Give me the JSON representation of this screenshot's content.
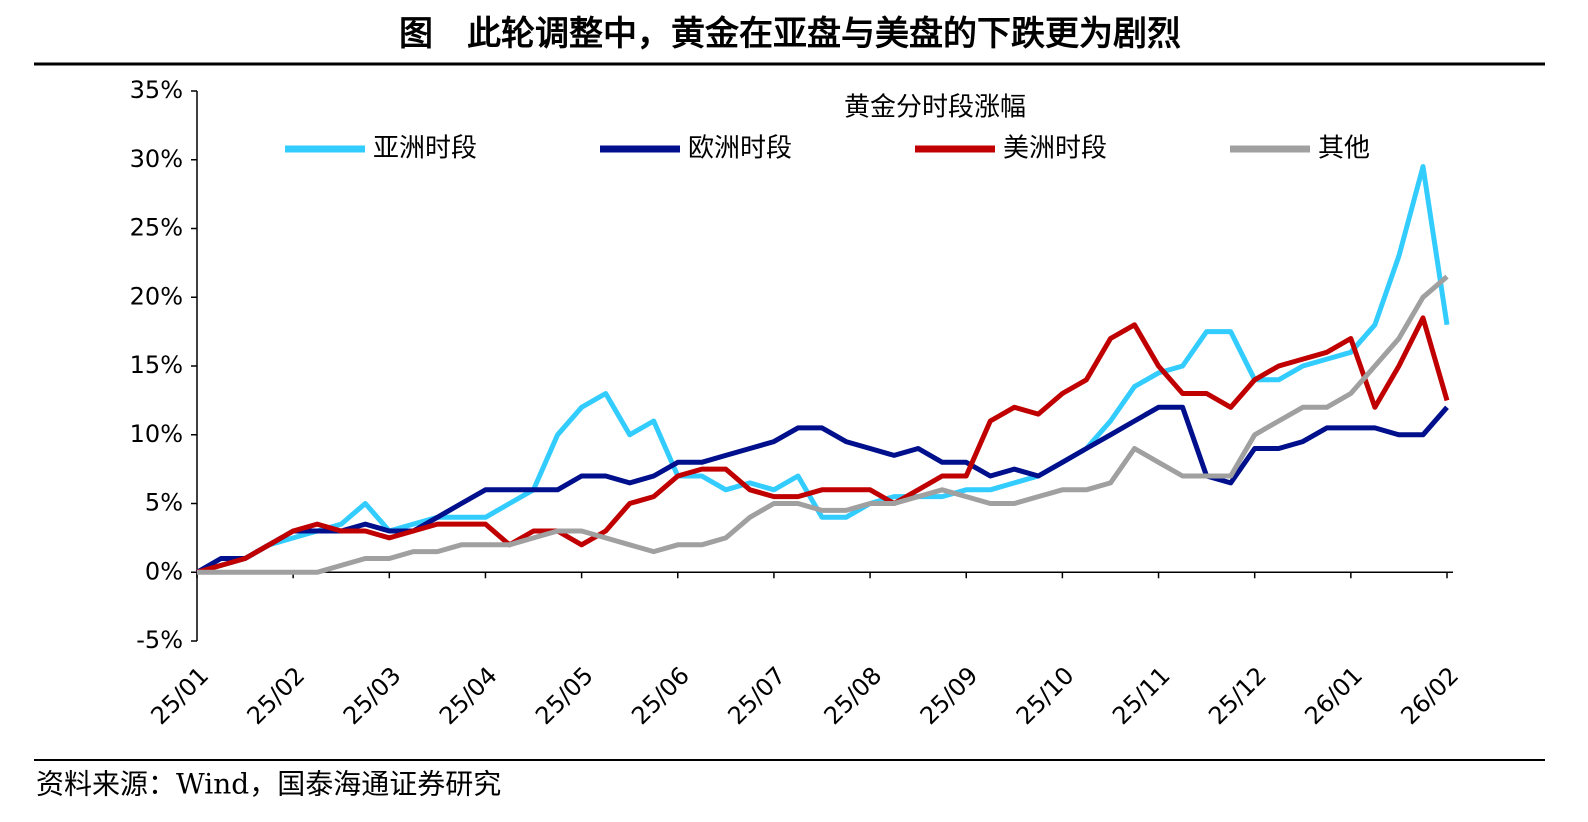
{
  "chart_data": {
    "type": "line",
    "title": "图　此轮调整中，黄金在亚盘与美盘的下跌更为剧烈",
    "legend_title": "黄金分时段涨幅",
    "source": "资料来源：Wind，国泰海通证券研究",
    "legend": "top",
    "categories": [
      "25/01",
      null,
      null,
      null,
      "25/02",
      null,
      null,
      null,
      "25/03",
      null,
      null,
      null,
      "25/04",
      null,
      null,
      null,
      "25/05",
      null,
      null,
      null,
      "25/06",
      null,
      null,
      null,
      "25/07",
      null,
      null,
      null,
      "25/08",
      null,
      null,
      null,
      "25/09",
      null,
      null,
      null,
      "25/10",
      null,
      null,
      null,
      "25/11",
      null,
      null,
      null,
      "25/12",
      null,
      null,
      null,
      "26/01",
      null,
      null,
      null,
      "26/02"
    ],
    "series": [
      {
        "name": "亚洲时段",
        "color": "#33ccff",
        "values": [
          0,
          0.5,
          1,
          2,
          2.5,
          3,
          3.5,
          5,
          3,
          3.5,
          4,
          4,
          4,
          5,
          6,
          10,
          12,
          13,
          10,
          11,
          7,
          7,
          6,
          6.5,
          6,
          7,
          4,
          4,
          5,
          5.5,
          5.5,
          5.5,
          6,
          6,
          6.5,
          7,
          8,
          9,
          11,
          13.5,
          14.5,
          15,
          17.5,
          17.5,
          14,
          14,
          15,
          15.5,
          16,
          18,
          23,
          29.5,
          18
        ]
      },
      {
        "name": "欧洲时段",
        "color": "#000f8c",
        "values": [
          0,
          1,
          1,
          2,
          3,
          3,
          3,
          3.5,
          3,
          3,
          4,
          5,
          6,
          6,
          6,
          6,
          7,
          7,
          6.5,
          7,
          8,
          8,
          8.5,
          9,
          9.5,
          10.5,
          10.5,
          9.5,
          9,
          8.5,
          9,
          8,
          8,
          7,
          7.5,
          7,
          8,
          9,
          10,
          11,
          12,
          12,
          7,
          6.5,
          9,
          9,
          9.5,
          10.5,
          10.5,
          10.5,
          10,
          10,
          12
        ]
      },
      {
        "name": "美洲时段",
        "color": "#c00000",
        "values": [
          0,
          0.5,
          1,
          2,
          3,
          3.5,
          3,
          3,
          2.5,
          3,
          3.5,
          3.5,
          3.5,
          2,
          3,
          3,
          2,
          3,
          5,
          5.5,
          7,
          7.5,
          7.5,
          6,
          5.5,
          5.5,
          6,
          6,
          6,
          5,
          6,
          7,
          7,
          11,
          12,
          11.5,
          13,
          14,
          17,
          18,
          15,
          13,
          13,
          12,
          14,
          15,
          15.5,
          16,
          17,
          12,
          15,
          18.5,
          12.5
        ]
      },
      {
        "name": "其他",
        "color": "#a0a0a0",
        "values": [
          0,
          0,
          0,
          0,
          0,
          0,
          0.5,
          1,
          1,
          1.5,
          1.5,
          2,
          2,
          2,
          2.5,
          3,
          3,
          2.5,
          2,
          1.5,
          2,
          2,
          2.5,
          4,
          5,
          5,
          4.5,
          4.5,
          5,
          5,
          5.5,
          6,
          5.5,
          5,
          5,
          5.5,
          6,
          6,
          6.5,
          9,
          8,
          7,
          7,
          7,
          10,
          11,
          12,
          12,
          13,
          15,
          17,
          20,
          21.5
        ]
      }
    ],
    "ylim": [
      -5,
      35
    ],
    "yticks": [
      {
        "value": -5,
        "label": "-5%"
      },
      {
        "value": 0,
        "label": "0%"
      },
      {
        "value": 5,
        "label": "5%"
      },
      {
        "value": 10,
        "label": "10%"
      },
      {
        "value": 15,
        "label": "15%"
      },
      {
        "value": 20,
        "label": "20%"
      },
      {
        "value": 25,
        "label": "25%"
      },
      {
        "value": 30,
        "label": "30%"
      },
      {
        "value": 35,
        "label": "35%"
      }
    ],
    "grid": false
  }
}
